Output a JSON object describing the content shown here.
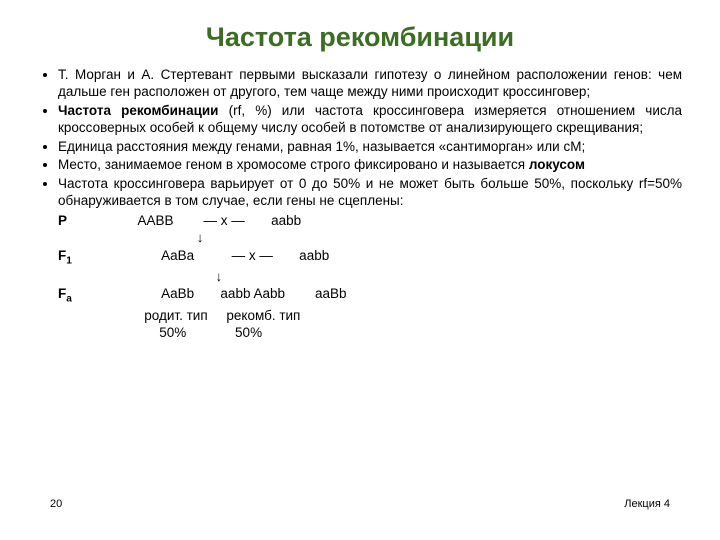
{
  "title": "Частота рекомбинации",
  "bullets": [
    {
      "html": "Т. Морган и А. Стертевант первыми высказали гипотезу о линейном расположении генов: чем дальше ген расположен от другого, тем чаще между ними происходит кроссинговер;"
    },
    {
      "html": "<span class=\"b\">Частота рекомбинации</span> (rf, %) или частота кроссинговера измеряется отношением числа кроссоверных особей к общему числу особей в потомстве от анализирующего скрещивания;"
    },
    {
      "html": "Единица расстояния между генами, равная 1%, называется «сантиморган» или сМ;"
    },
    {
      "html": "Место, занимаемое геном в хромосоме строго фиксировано и называется <span class=\"b\">локусом</span>"
    },
    {
      "html": "Частота кроссинговера варьирует от 0 до 50% и не может быть больше 50%, поскольку rf=50% обнаруживается в том случае, если гены не сцеплены:"
    }
  ],
  "cross": {
    "l1": "P                   AABB        — x —       aabb",
    "l2": "                                     ↓",
    "l3": "F₁                        AaBa          — x —       aabb",
    "l4": "                                          ↓",
    "l5": "Fₐ                        AaBb       aabb Aabb        aaBb",
    "l6": "                       родит. тип     рекомб. тип",
    "l7": "                           50%             50%"
  },
  "footer": {
    "page": "20",
    "lecture": "Лекция 4"
  },
  "colors": {
    "title": "#3b6e22",
    "text": "#000000",
    "background": "#ffffff"
  }
}
